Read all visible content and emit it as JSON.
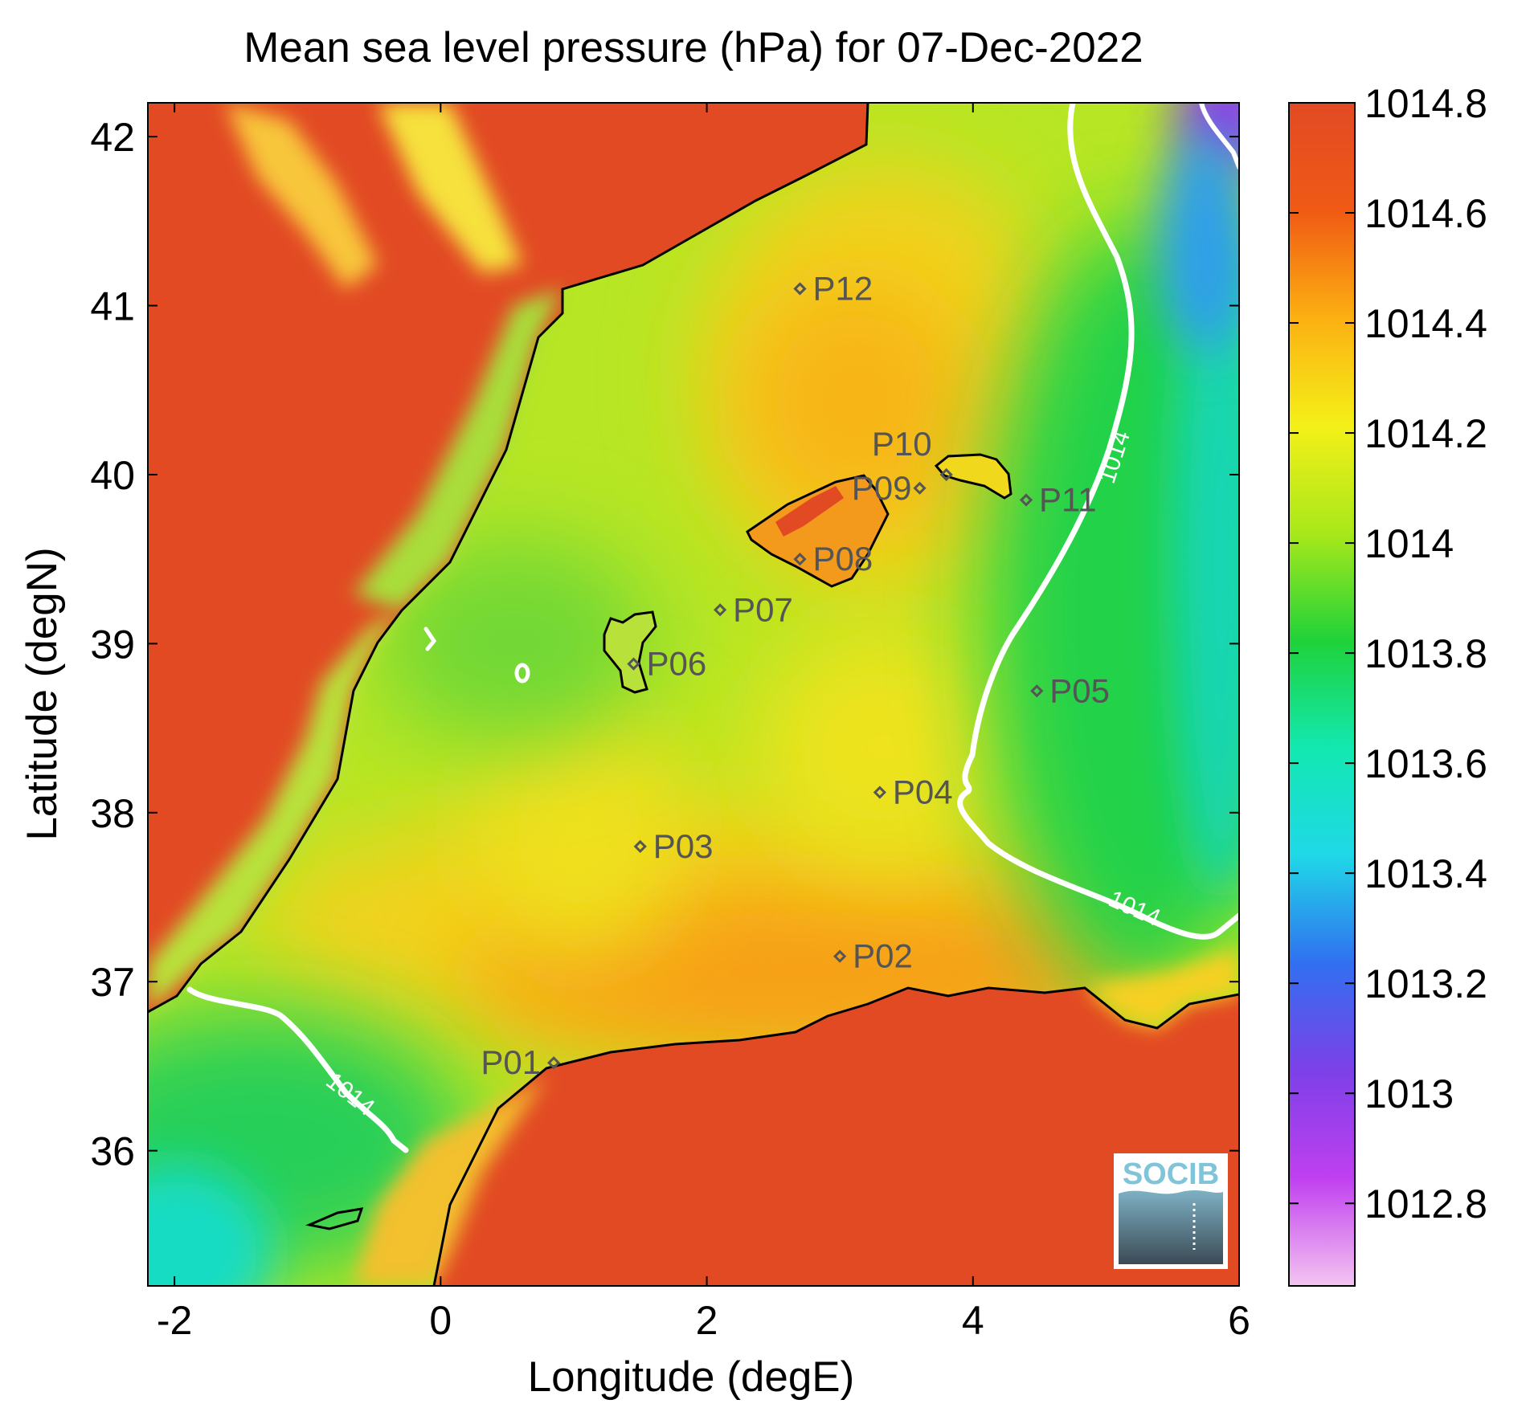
{
  "title": "Mean sea level pressure (hPa) for 07-Dec-2022",
  "axes": {
    "xlabel": "Longitude (degE)",
    "ylabel": "Latitude (degN)",
    "xlim": [
      -2.2,
      6.0
    ],
    "ylim": [
      35.2,
      42.2
    ],
    "xticks": [
      "-2",
      "0",
      "2",
      "4",
      "6"
    ],
    "yticks": [
      "36",
      "37",
      "38",
      "39",
      "40",
      "41",
      "42"
    ]
  },
  "colorbar": {
    "ticks": [
      "1012.8",
      "1013",
      "1013.2",
      "1013.4",
      "1013.6",
      "1013.8",
      "1014",
      "1014.2",
      "1014.4",
      "1014.6",
      "1014.8"
    ],
    "range": [
      1012.65,
      1014.8
    ],
    "colormap": [
      "#f4c4f0",
      "#c040f0",
      "#7d40e8",
      "#3070f0",
      "#20d8e8",
      "#12e8b0",
      "#1fd23a",
      "#a8e81a",
      "#f4f018",
      "#fcb012",
      "#f05a14",
      "#e24a24"
    ]
  },
  "contour": {
    "level": "1014",
    "labels": [
      "1014",
      "1014",
      "1014"
    ],
    "color": "#ffffff"
  },
  "stations": [
    {
      "id": "P01",
      "lon": 0.85,
      "lat": 36.52
    },
    {
      "id": "P02",
      "lon": 3.0,
      "lat": 37.15
    },
    {
      "id": "P03",
      "lon": 1.5,
      "lat": 37.8
    },
    {
      "id": "P04",
      "lon": 3.3,
      "lat": 38.12
    },
    {
      "id": "P05",
      "lon": 4.48,
      "lat": 38.72
    },
    {
      "id": "P06",
      "lon": 1.45,
      "lat": 38.88
    },
    {
      "id": "P07",
      "lon": 2.1,
      "lat": 39.2
    },
    {
      "id": "P08",
      "lon": 2.7,
      "lat": 39.5
    },
    {
      "id": "P09",
      "lon": 3.6,
      "lat": 39.92
    },
    {
      "id": "P10",
      "lon": 3.8,
      "lat": 40.0
    },
    {
      "id": "P11",
      "lon": 4.4,
      "lat": 39.85
    },
    {
      "id": "P12",
      "lon": 2.7,
      "lat": 41.1
    }
  ],
  "logo": {
    "text": "SOCIB"
  },
  "colors": {
    "land": "#e24a24",
    "coast": "#000000",
    "station": "#555555"
  }
}
